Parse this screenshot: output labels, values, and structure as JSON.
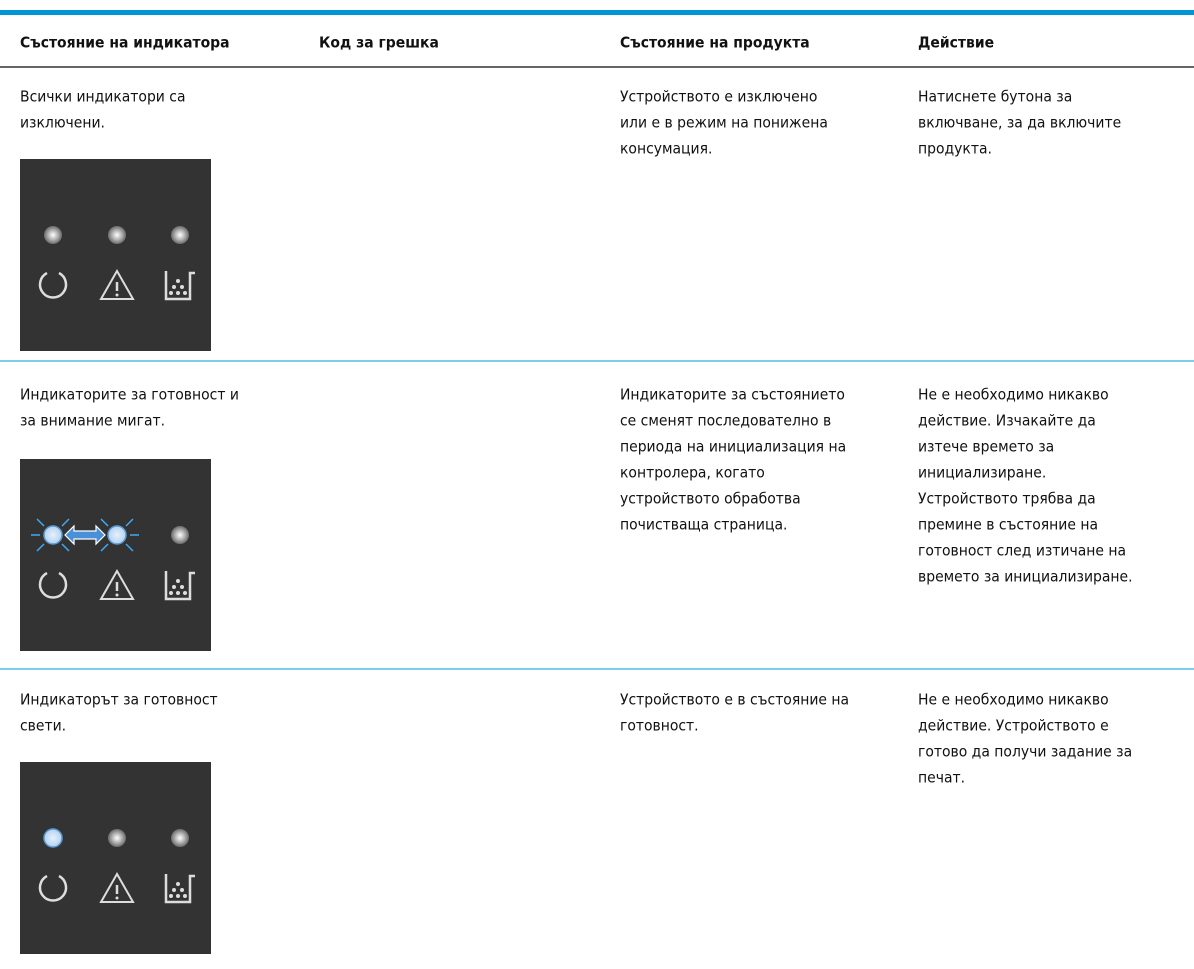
{
  "table": {
    "headers": [
      "Състояние на индикатора",
      "Код за грешка",
      "Състояние на продукта",
      "Действие"
    ],
    "rows": [
      {
        "indicator": [
          "Всички индикатори са",
          "изключени."
        ],
        "status": [
          "Устройството е изключено",
          "или е в режим на понижена",
          "консумация."
        ],
        "action": [
          "Натиснете бутона за",
          "включване, за да включите",
          "продукта."
        ]
      },
      {
        "indicator": [
          "Индикаторите за готовност и",
          "за внимание мигат."
        ],
        "status": [
          "Индикаторите за състоянието",
          "се сменят последователно в",
          "периода на инициализация на",
          "контролера, когато",
          "устройството обработва",
          "почистваща страница."
        ],
        "action": [
          "Не е необходимо никакво",
          "действие. Изчакайте да",
          "изтече времето за",
          "инициализиране.",
          "Устройството трябва да",
          "премине в състояние на",
          "готовност след изтичане на",
          "времето за инициализиране."
        ]
      },
      {
        "indicator": [
          "Индикаторът за готовност",
          "свети."
        ],
        "status": [
          "Устройството е в състояние на",
          "готовност."
        ],
        "action": [
          "Не е необходимо никакво",
          "действие. Устройството е",
          "готово да получи задание за",
          "печат."
        ]
      }
    ]
  }
}
